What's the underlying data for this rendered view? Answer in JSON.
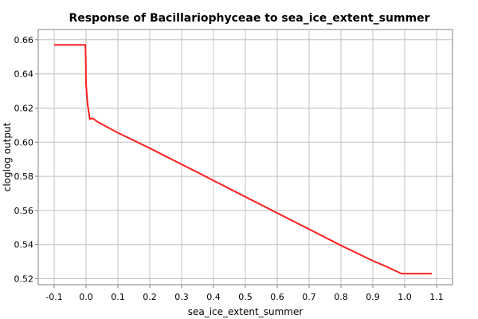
{
  "chart_data": {
    "type": "line",
    "title": "Response of Bacillariophyceae to sea_ice_extent_summer",
    "xlabel": "sea_ice_extent_summer",
    "ylabel": "cloglog output",
    "xlim": [
      -0.15,
      1.15
    ],
    "ylim": [
      0.5165,
      0.666
    ],
    "x_ticks": [
      -0.1,
      0.0,
      0.1,
      0.2,
      0.3,
      0.4,
      0.5,
      0.6,
      0.7,
      0.8,
      0.9,
      1.0,
      1.1
    ],
    "x_tick_labels": [
      "-0.1",
      "0.0",
      "0.1",
      "0.2",
      "0.3",
      "0.4",
      "0.5",
      "0.6",
      "0.7",
      "0.8",
      "0.9",
      "1.0",
      "1.1"
    ],
    "y_ticks": [
      0.52,
      0.54,
      0.56,
      0.58,
      0.6,
      0.62,
      0.64,
      0.66
    ],
    "y_tick_labels": [
      "0.52",
      "0.54",
      "0.56",
      "0.58",
      "0.60",
      "0.62",
      "0.64",
      "0.66"
    ],
    "grid": true,
    "line_color": "#ff2020",
    "series": [
      {
        "x": [
          -0.1,
          -0.002,
          -0.001,
          0.0,
          0.005,
          0.012,
          0.02,
          0.025,
          0.035,
          0.1,
          0.2,
          0.3,
          0.4,
          0.5,
          0.6,
          0.7,
          0.8,
          0.9,
          0.95,
          0.99,
          1.085
        ],
        "y": [
          0.657,
          0.657,
          0.65,
          0.634,
          0.622,
          0.6135,
          0.614,
          0.6135,
          0.612,
          0.6055,
          0.5965,
          0.587,
          0.5775,
          0.568,
          0.5585,
          0.549,
          0.5395,
          0.5305,
          0.5265,
          0.523,
          0.523
        ]
      }
    ]
  }
}
